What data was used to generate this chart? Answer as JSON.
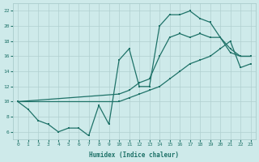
{
  "xlabel": "Humidex (Indice chaleur)",
  "bg_color": "#ceeaea",
  "line_color": "#1e7268",
  "grid_color": "#b0d0d0",
  "xlim": [
    -0.5,
    23.5
  ],
  "ylim": [
    5,
    23
  ],
  "xticks": [
    0,
    1,
    2,
    3,
    4,
    5,
    6,
    7,
    8,
    9,
    10,
    11,
    12,
    13,
    14,
    15,
    16,
    17,
    18,
    19,
    20,
    21,
    22,
    23
  ],
  "yticks": [
    6,
    8,
    10,
    12,
    14,
    16,
    18,
    20,
    22
  ],
  "line1_x": [
    0,
    1,
    2,
    3,
    4,
    5,
    6,
    7,
    8,
    9,
    10,
    11,
    12,
    13,
    14,
    15,
    16,
    17,
    18,
    19,
    20,
    21,
    22,
    23
  ],
  "line1_y": [
    10,
    9,
    7.5,
    7,
    6,
    6.5,
    6.5,
    5.5,
    9.5,
    7,
    15.5,
    17,
    12,
    12,
    20,
    21.5,
    21.5,
    22,
    21,
    20.5,
    18.5,
    16.5,
    16,
    16
  ],
  "line2_x": [
    0,
    10,
    11,
    12,
    13,
    14,
    15,
    16,
    17,
    18,
    19,
    20,
    21,
    22,
    23
  ],
  "line2_y": [
    10,
    11,
    11.5,
    12.5,
    13,
    16,
    18.5,
    19,
    18.5,
    19,
    18.5,
    18.5,
    17,
    16,
    16
  ],
  "line3_x": [
    0,
    10,
    11,
    12,
    13,
    14,
    15,
    16,
    17,
    18,
    19,
    20,
    21,
    22,
    23
  ],
  "line3_y": [
    10,
    10,
    10.5,
    11,
    11.5,
    12,
    13,
    14,
    15,
    15.5,
    16,
    17,
    18,
    14.5,
    15
  ]
}
